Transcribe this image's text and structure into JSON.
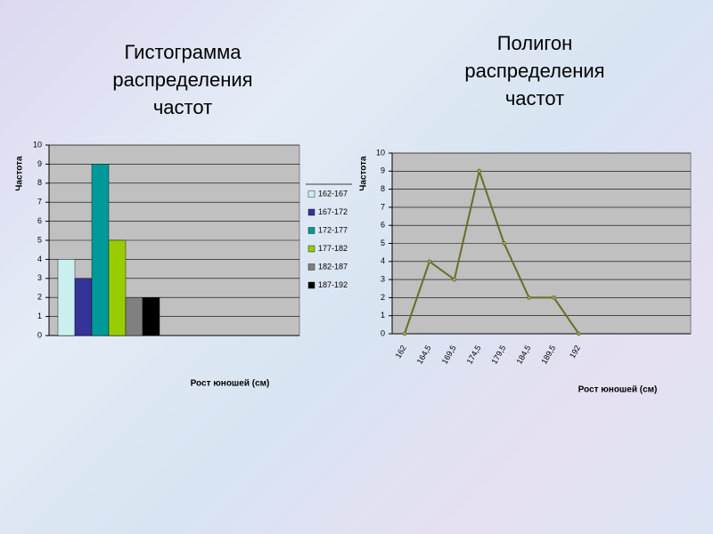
{
  "chart_data": [
    {
      "type": "bar",
      "title": "Гистограмма распределения частот",
      "x_label": "Рост юношей (см)",
      "y_label": "Частота",
      "categories": [
        null
      ],
      "series": [
        {
          "name": "162-167",
          "color": "#ccf0f0",
          "values": [
            4
          ]
        },
        {
          "name": "167-172",
          "color": "#333399",
          "values": [
            3
          ]
        },
        {
          "name": "172-177",
          "color": "#009999",
          "values": [
            9
          ]
        },
        {
          "name": "177-182",
          "color": "#99cc00",
          "values": [
            5
          ]
        },
        {
          "name": "182-187",
          "color": "#808080",
          "values": [
            2
          ]
        },
        {
          "name": "187-192",
          "color": "#000000",
          "values": [
            2
          ]
        }
      ],
      "ylim": [
        0,
        10
      ],
      "yticks": [
        0,
        1,
        2,
        3,
        4,
        5,
        6,
        7,
        8,
        9,
        10
      ],
      "grid": true,
      "legend": "right"
    },
    {
      "type": "line",
      "title": "Полигон распределения частот",
      "x_label": "Рост юношей (см)",
      "y_label": "Частота",
      "categories": [
        "162",
        "164,5",
        "169,5",
        "174,5",
        "179,5",
        "184,5",
        "189,5",
        "192",
        null,
        null,
        null,
        null
      ],
      "series": [
        {
          "name": null,
          "color": "#6b6b2a",
          "values": [
            0,
            4,
            3,
            9,
            5,
            2,
            2,
            0,
            null,
            null,
            null,
            null
          ]
        }
      ],
      "ylim": [
        0,
        10
      ],
      "yticks": [
        0,
        1,
        2,
        3,
        4,
        5,
        6,
        7,
        8,
        9,
        10
      ],
      "grid": true
    }
  ]
}
